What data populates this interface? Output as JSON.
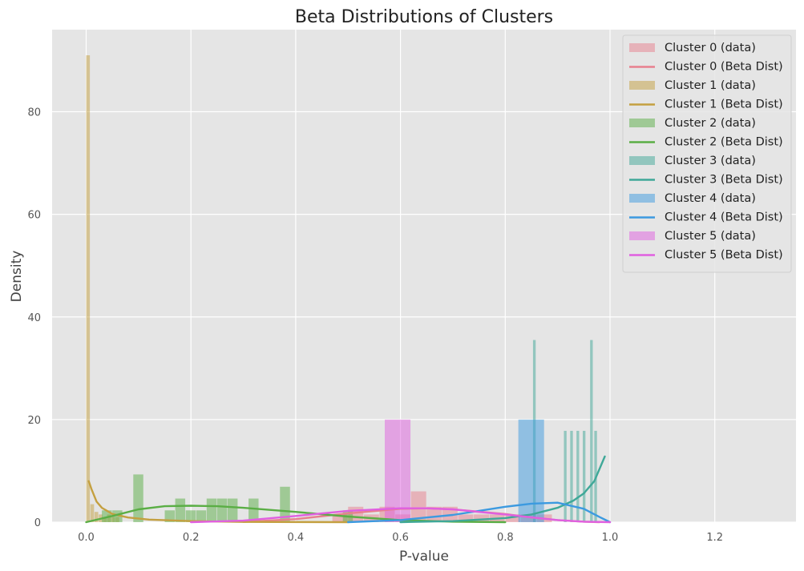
{
  "chart_data": {
    "type": "histogram+line",
    "title": "Beta Distributions of Clusters",
    "xlabel": "P-value",
    "ylabel": "Density",
    "xlim": [
      -0.065,
      1.355
    ],
    "ylim": [
      0,
      96
    ],
    "xticks": [
      0.0,
      0.2,
      0.4,
      0.6,
      0.8,
      1.0,
      1.2
    ],
    "xtick_labels": [
      "0.0",
      "0.2",
      "0.4",
      "0.6",
      "0.8",
      "1.0",
      "1.2"
    ],
    "yticks": [
      0,
      20,
      40,
      60,
      80
    ],
    "ytick_labels": [
      "0",
      "20",
      "40",
      "60",
      "80"
    ],
    "grid": true,
    "legend_position": "top-right",
    "background": "#e5e5e5",
    "series": [
      {
        "name": "Cluster 0",
        "data_label": "Cluster 0 (data)",
        "line_label": "Cluster 0 (Beta Dist)",
        "color": "#e8808e",
        "bars": [
          [
            0.47,
            0.5,
            1.5
          ],
          [
            0.5,
            0.53,
            3.0
          ],
          [
            0.53,
            0.56,
            1.5
          ],
          [
            0.56,
            0.59,
            3.0
          ],
          [
            0.59,
            0.62,
            1.5
          ],
          [
            0.62,
            0.65,
            6.0
          ],
          [
            0.65,
            0.68,
            3.0
          ],
          [
            0.68,
            0.71,
            3.0
          ],
          [
            0.71,
            0.74,
            1.5
          ],
          [
            0.74,
            0.77,
            1.5
          ],
          [
            0.77,
            0.8,
            1.5
          ],
          [
            0.8,
            0.83,
            1.5
          ],
          [
            0.83,
            0.86,
            1.5
          ],
          [
            0.86,
            0.89,
            1.5
          ]
        ],
        "line": [
          [
            0.3,
            0.05
          ],
          [
            0.4,
            0.6
          ],
          [
            0.5,
            1.7
          ],
          [
            0.6,
            2.6
          ],
          [
            0.65,
            2.7
          ],
          [
            0.7,
            2.5
          ],
          [
            0.8,
            1.6
          ],
          [
            0.85,
            0.9
          ],
          [
            0.9,
            0.4
          ],
          [
            0.95,
            0.1
          ],
          [
            0.98,
            0.0
          ]
        ]
      },
      {
        "name": "Cluster 1",
        "data_label": "Cluster 1 (data)",
        "line_label": "Cluster 1 (Beta Dist)",
        "color": "#c4a040",
        "bars": [
          [
            0.0,
            0.008,
            91.0
          ],
          [
            0.008,
            0.016,
            3.5
          ],
          [
            0.016,
            0.024,
            2.0
          ],
          [
            0.024,
            0.032,
            1.5
          ],
          [
            0.032,
            0.04,
            1.0
          ],
          [
            0.04,
            0.048,
            1.5
          ],
          [
            0.048,
            0.056,
            1.0
          ],
          [
            0.056,
            0.064,
            1.0
          ]
        ],
        "line": [
          [
            0.005,
            8.0
          ],
          [
            0.01,
            6.5
          ],
          [
            0.02,
            4.0
          ],
          [
            0.03,
            2.8
          ],
          [
            0.05,
            1.6
          ],
          [
            0.08,
            0.9
          ],
          [
            0.12,
            0.5
          ],
          [
            0.2,
            0.2
          ],
          [
            0.3,
            0.05
          ],
          [
            0.5,
            0.0
          ]
        ]
      },
      {
        "name": "Cluster 2",
        "data_label": "Cluster 2 (data)",
        "line_label": "Cluster 2 (Beta Dist)",
        "color": "#5aae45",
        "bars": [
          [
            0.03,
            0.05,
            2.3
          ],
          [
            0.05,
            0.07,
            2.3
          ],
          [
            0.09,
            0.11,
            9.3
          ],
          [
            0.15,
            0.17,
            2.3
          ],
          [
            0.17,
            0.19,
            4.6
          ],
          [
            0.19,
            0.21,
            2.3
          ],
          [
            0.21,
            0.23,
            2.3
          ],
          [
            0.23,
            0.25,
            4.6
          ],
          [
            0.25,
            0.27,
            4.6
          ],
          [
            0.27,
            0.29,
            4.6
          ],
          [
            0.31,
            0.33,
            4.6
          ],
          [
            0.37,
            0.39,
            6.9
          ],
          [
            0.49,
            0.51,
            2.3
          ]
        ],
        "line": [
          [
            0.0,
            0.0
          ],
          [
            0.05,
            1.2
          ],
          [
            0.1,
            2.5
          ],
          [
            0.15,
            3.1
          ],
          [
            0.2,
            3.2
          ],
          [
            0.25,
            3.1
          ],
          [
            0.3,
            2.8
          ],
          [
            0.4,
            2.0
          ],
          [
            0.5,
            1.1
          ],
          [
            0.6,
            0.4
          ],
          [
            0.7,
            0.1
          ],
          [
            0.8,
            0.0
          ]
        ]
      },
      {
        "name": "Cluster 3",
        "data_label": "Cluster 3 (data)",
        "line_label": "Cluster 3 (Beta Dist)",
        "color": "#3fa898",
        "bars": [
          [
            0.853,
            0.859,
            35.5
          ],
          [
            0.912,
            0.918,
            17.8
          ],
          [
            0.924,
            0.93,
            17.8
          ],
          [
            0.936,
            0.942,
            17.8
          ],
          [
            0.948,
            0.954,
            17.8
          ],
          [
            0.962,
            0.968,
            35.5
          ],
          [
            0.97,
            0.976,
            17.8
          ]
        ],
        "line": [
          [
            0.6,
            0.0
          ],
          [
            0.7,
            0.2
          ],
          [
            0.8,
            0.8
          ],
          [
            0.85,
            1.5
          ],
          [
            0.9,
            2.8
          ],
          [
            0.93,
            4.2
          ],
          [
            0.95,
            5.6
          ],
          [
            0.97,
            8.0
          ],
          [
            0.99,
            12.8
          ]
        ]
      },
      {
        "name": "Cluster 4",
        "data_label": "Cluster 4 (data)",
        "line_label": "Cluster 4 (Beta Dist)",
        "color": "#3c9ae0",
        "bars": [
          [
            0.825,
            0.875,
            20.0
          ]
        ],
        "line": [
          [
            0.5,
            0.0
          ],
          [
            0.6,
            0.4
          ],
          [
            0.7,
            1.4
          ],
          [
            0.8,
            3.0
          ],
          [
            0.85,
            3.6
          ],
          [
            0.9,
            3.8
          ],
          [
            0.95,
            2.6
          ],
          [
            0.98,
            1.0
          ],
          [
            1.0,
            0.0
          ]
        ]
      },
      {
        "name": "Cluster 5",
        "data_label": "Cluster 5 (data)",
        "line_label": "Cluster 5 (Beta Dist)",
        "color": "#e060e0",
        "bars": [
          [
            0.57,
            0.62,
            20.0
          ]
        ],
        "line": [
          [
            0.2,
            0.0
          ],
          [
            0.3,
            0.3
          ],
          [
            0.4,
            1.2
          ],
          [
            0.5,
            2.2
          ],
          [
            0.6,
            2.7
          ],
          [
            0.65,
            2.7
          ],
          [
            0.7,
            2.5
          ],
          [
            0.8,
            1.5
          ],
          [
            0.9,
            0.4
          ],
          [
            0.95,
            0.1
          ],
          [
            1.0,
            0.0
          ]
        ]
      }
    ]
  }
}
